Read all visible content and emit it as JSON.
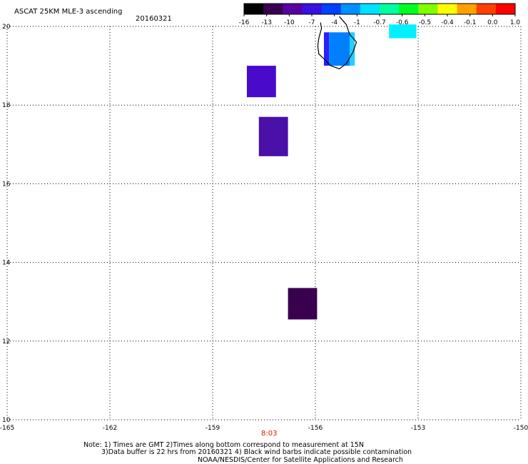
{
  "header": {
    "title": "ASCAT 25KM MLE-3 ascending",
    "date": "20160321"
  },
  "colorbar": {
    "labels": [
      "-16",
      "-13",
      "-10",
      "-7",
      "-4",
      "-1",
      "-0.7",
      "-0.6",
      "-0.5",
      "-0.4",
      "-0.1",
      "0.0",
      "1.0"
    ],
    "colors": [
      "#000000",
      "#3a0050",
      "#5a00a0",
      "#3a10e0",
      "#0040ff",
      "#0090ff",
      "#00e0ff",
      "#00ffa0",
      "#00ff20",
      "#80ff00",
      "#ffff00",
      "#ffa000",
      "#ff4000",
      "#ff0000"
    ]
  },
  "axes": {
    "x_ticks": [
      "-165",
      "-162",
      "-159",
      "-156",
      "-153",
      "-150"
    ],
    "y_ticks": [
      "20",
      "18",
      "16",
      "14",
      "12",
      "10"
    ],
    "x_range": [
      -165,
      -150
    ],
    "y_range": [
      10,
      20
    ]
  },
  "time_label": "8:03",
  "cells": [
    {
      "lon0": -158.0,
      "lon1": -157.15,
      "lat0": 18.2,
      "lat1": 19.0,
      "color": "#4a0acc",
      "mle_class": "-10"
    },
    {
      "lon0": -157.65,
      "lon1": -156.8,
      "lat0": 16.7,
      "lat1": 17.7,
      "color": "#4a10a8",
      "mle_class": "-13"
    },
    {
      "lon0": -156.8,
      "lon1": -155.95,
      "lat0": 12.55,
      "lat1": 13.35,
      "color": "#3a0050",
      "mle_class": "-16"
    },
    {
      "lon0": -155.75,
      "lon1": -155.6,
      "lat0": 19.0,
      "lat1": 19.85,
      "color": "#2a20ff",
      "mle_class": "-7"
    },
    {
      "lon0": -155.6,
      "lon1": -155.0,
      "lat0": 19.0,
      "lat1": 19.85,
      "color": "#0080ff",
      "mle_class": "-4"
    },
    {
      "lon0": -155.0,
      "lon1": -154.85,
      "lat0": 19.0,
      "lat1": 19.85,
      "color": "#20d0ff",
      "mle_class": "-1"
    },
    {
      "lon0": -153.85,
      "lon1": -153.05,
      "lat0": 19.7,
      "lat1": 20.05,
      "color": "#00f0ff",
      "mle_class": "-1"
    }
  ],
  "coastline": [
    [
      -155.85,
      20.1
    ],
    [
      -155.82,
      19.95
    ],
    [
      -155.9,
      19.7
    ],
    [
      -155.93,
      19.5
    ],
    [
      -155.9,
      19.3
    ],
    [
      -155.72,
      19.15
    ],
    [
      -155.55,
      19.0
    ],
    [
      -155.3,
      18.92
    ],
    [
      -155.1,
      19.05
    ],
    [
      -154.9,
      19.35
    ],
    [
      -154.8,
      19.6
    ],
    [
      -155.0,
      19.8
    ],
    [
      -155.1,
      20.05
    ],
    [
      -155.3,
      20.25
    ]
  ],
  "footer": {
    "line1": "Note: 1) Times are GMT 2)Times along bottom correspond to measurement at 15N",
    "line2": "3)Data buffer is 22 hrs from 20160321 4) Black wind barbs indicate possible contamination",
    "line3": "NOAA/NESDIS/Center for Satellite Applications and Research"
  }
}
